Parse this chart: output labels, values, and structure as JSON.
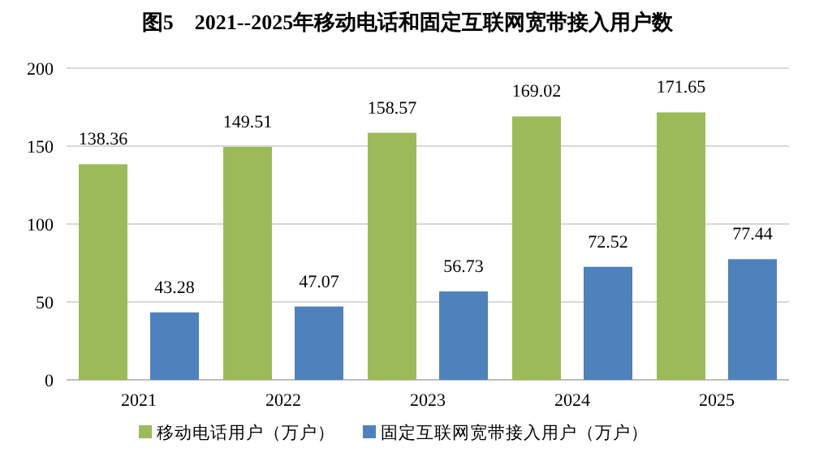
{
  "chart_data": {
    "type": "bar",
    "title": "图5　2021--2025年移动电话和固定互联网宽带接入用户数",
    "categories": [
      "2021",
      "2022",
      "2023",
      "2024",
      "2025"
    ],
    "series": [
      {
        "name": "移动电话用户（万户）",
        "color": "#9bbb59",
        "values": [
          138.36,
          149.51,
          158.57,
          169.02,
          171.65
        ]
      },
      {
        "name": "固定互联网宽带接入用户（万户）",
        "color": "#4f81bd",
        "values": [
          43.28,
          47.07,
          56.73,
          72.52,
          77.44
        ]
      }
    ],
    "ylim": [
      0,
      200
    ],
    "yticks": [
      0,
      50,
      100,
      150,
      200
    ],
    "grid": "y",
    "legend": "bottom",
    "data_labels": true
  }
}
